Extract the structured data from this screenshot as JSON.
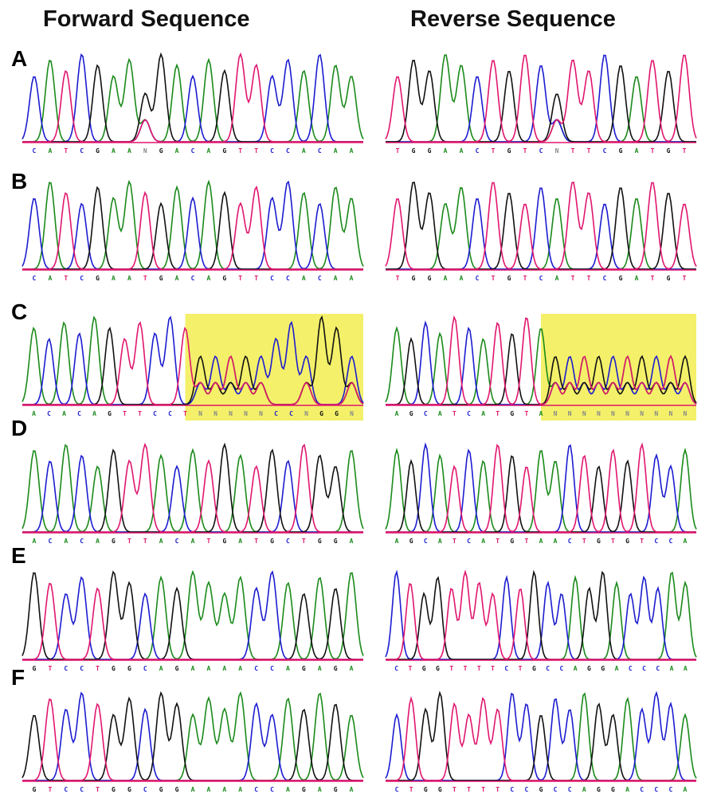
{
  "headers": {
    "forward": "Forward Sequence",
    "reverse": "Reverse Sequence"
  },
  "colors": {
    "A": "#1a8a1a",
    "C": "#1c1cd0",
    "G": "#111111",
    "T": "#e0166e",
    "N": "#888888",
    "baseline": "#e0166e",
    "highlight": "#f4f06a"
  },
  "panels": [
    {
      "label": "A",
      "forward": {
        "bases": "CATCGAANGACAGTTCCACAA"
      },
      "reverse": {
        "bases": "TGGAACTGTCNTTCGATGT"
      }
    },
    {
      "label": "B",
      "forward": {
        "bases": "CATCGAATGACAGTTCCACAA"
      },
      "reverse": {
        "bases": "TGGAACTGTCATTCGATGT"
      }
    },
    {
      "label": "C",
      "forward": {
        "bases": "ACACAGTTCCTNNNNNCCNGGN",
        "highlight_from": 11
      },
      "reverse": {
        "bases": "AGCATCATGTANNNNNNNNNN",
        "highlight_from": 11
      }
    },
    {
      "label": "D",
      "forward": {
        "bases": "ACACAGTTACATGATGCTGGA"
      },
      "reverse": {
        "bases": "AGCATCATGTAACTGTGTCCA"
      }
    },
    {
      "label": "E",
      "forward": {
        "bases": "GTCCTGGCAGAAAACCAGAGA"
      },
      "reverse": {
        "bases": "CTGGTTTTCTGCCAGGACCCAA"
      }
    },
    {
      "label": "F",
      "forward": {
        "bases": "GTCCTGGCGGAAAACCAGAGA"
      },
      "reverse": {
        "bases": "CTGGTTTTCCGCCAGGACCCA"
      }
    }
  ]
}
